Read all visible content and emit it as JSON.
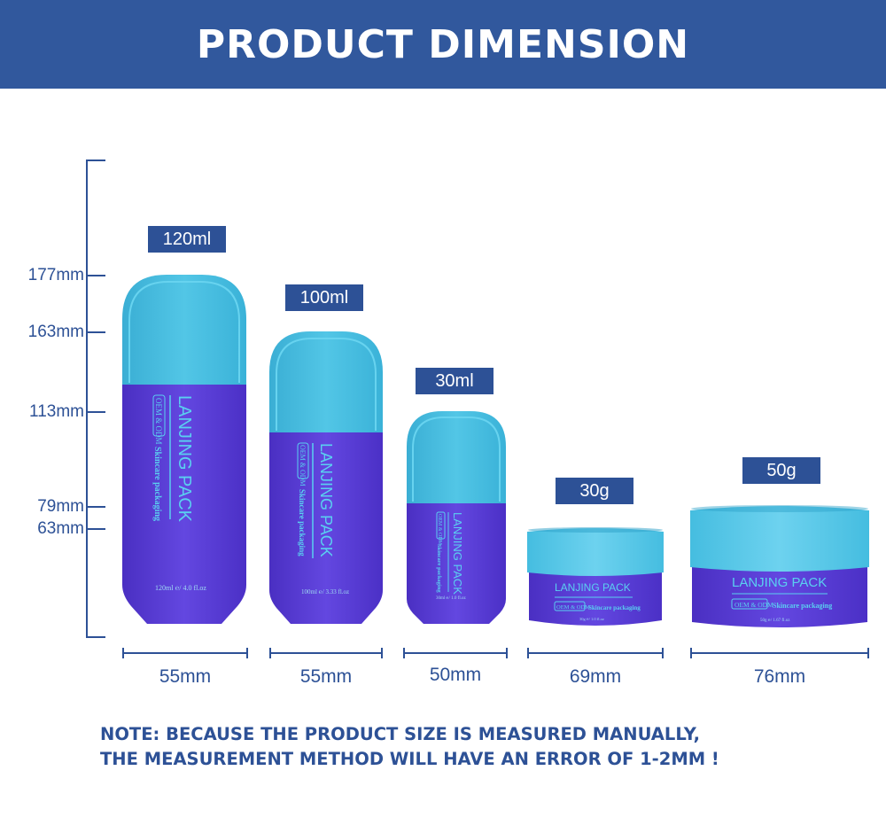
{
  "header": {
    "title": "PRODUCT DIMENSION"
  },
  "height_axis": {
    "labels": [
      "177mm",
      "163mm",
      "113mm",
      "79mm",
      "63mm"
    ]
  },
  "products": [
    {
      "volume": "120ml",
      "width": "55mm",
      "brand": "LANJING PACK",
      "badge": "OEM & ODM",
      "subtitle": "Skincare packaging",
      "capacity": "120ml ℮/ 4.0 fl.oz"
    },
    {
      "volume": "100ml",
      "width": "55mm",
      "brand": "LANJING PACK",
      "badge": "OEM & ODM",
      "subtitle": "Skincare packaging",
      "capacity": "100ml ℮/ 3.33 fl.oz"
    },
    {
      "volume": "30ml",
      "width": "50mm",
      "brand": "LANJING PACK",
      "badge": "OEM & ODM",
      "subtitle": "Skincare packaging",
      "capacity": "30ml ℮/ 1.0 fl.oz"
    },
    {
      "volume": "30g",
      "width": "69mm",
      "brand": "LANJING PACK",
      "badge": "OEM & ODM",
      "subtitle": "Skincare packaging",
      "capacity": "30g ℮/ 1.0 fl.oz"
    },
    {
      "volume": "50g",
      "width": "76mm",
      "brand": "LANJING PACK",
      "badge": "OEM & ODM",
      "subtitle": "Skincare packaging",
      "capacity": "50g ℮/ 1.67 fl.oz"
    }
  ],
  "note": {
    "line1": "NOTE:  BECAUSE THE PRODUCT SIZE IS MEASURED MANUALLY,",
    "line2": "THE MEASUREMENT METHOD WILL HAVE AN ERROR OF 1-2MM  !"
  },
  "colors": {
    "header": "#31589d",
    "accent": "#2d5196",
    "cap": "#45bde0",
    "body": "#5b3fd6"
  }
}
